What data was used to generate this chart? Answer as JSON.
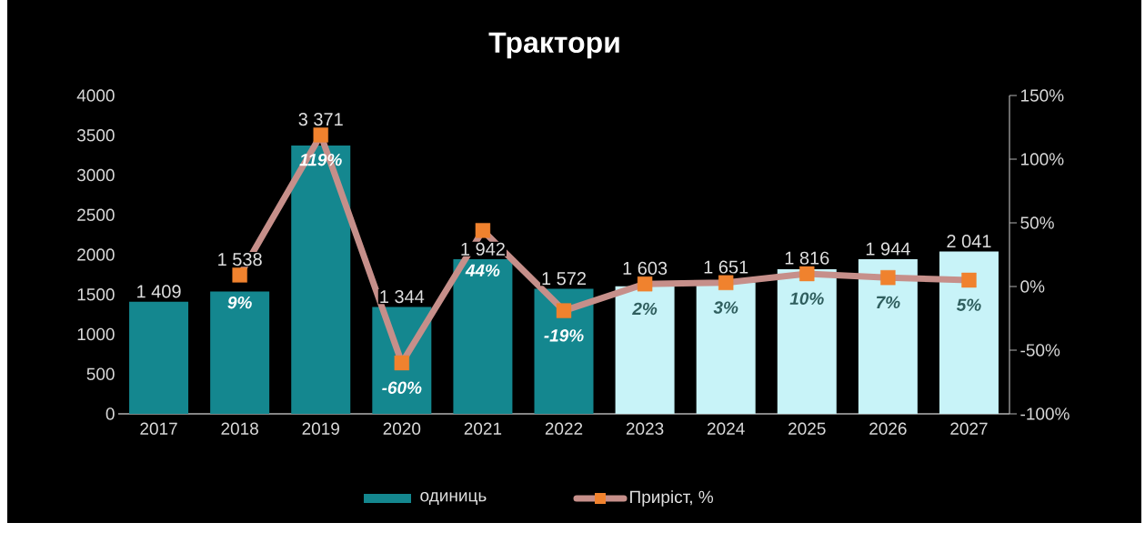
{
  "chart_data": {
    "type": "bar",
    "title": "Трактори",
    "categories": [
      "2017",
      "2018",
      "2019",
      "2020",
      "2021",
      "2022",
      "2023",
      "2024",
      "2025",
      "2026",
      "2027"
    ],
    "series": [
      {
        "name": "одиниць",
        "colors": [
          "#14878f",
          "#14878f",
          "#14878f",
          "#14878f",
          "#14878f",
          "#14878f",
          "#c8f3f8",
          "#c8f3f8",
          "#c8f3f8",
          "#c8f3f8",
          "#c8f3f8"
        ],
        "values": [
          1409,
          1538,
          3371,
          1344,
          1942,
          1572,
          1603,
          1651,
          1816,
          1944,
          2041
        ],
        "value_labels": [
          "1 409",
          "1 538",
          "3 371",
          "1 344",
          "1 942",
          "1 572",
          "1 603",
          "1 651",
          "1 816",
          "1 944",
          "2 041"
        ]
      },
      {
        "name": "Приріст, %",
        "type": "line",
        "axis": "y2",
        "color": "#c68f8a",
        "colors": [
          null,
          "#f0822e",
          "#f0822e",
          "#f0822e",
          "#f0822e",
          "#f0822e",
          "#f0822e",
          "#f0822e",
          "#f0822e",
          "#f0822e",
          "#f0822e"
        ],
        "values": [
          null,
          9,
          119,
          -60,
          44,
          -19,
          2,
          3,
          10,
          7,
          5
        ],
        "value_labels": [
          null,
          "9%",
          "119%",
          "-60%",
          "44%",
          "-19%",
          "2%",
          "3%",
          "10%",
          "7%",
          "5%"
        ]
      }
    ],
    "ylim": [
      0,
      4000
    ],
    "yticks": [
      0,
      500,
      1000,
      1500,
      2000,
      2500,
      3000,
      3500,
      4000
    ],
    "y2lim": [
      -100,
      150
    ],
    "y2ticks": [
      {
        "value": -100,
        "label": "-100%"
      },
      {
        "value": -50,
        "label": "-50%"
      },
      {
        "value": 0,
        "label": "0%"
      },
      {
        "value": 50,
        "label": "50%"
      },
      {
        "value": 100,
        "label": "100%"
      },
      {
        "value": 150,
        "label": "150%"
      }
    ],
    "legend": "bottom",
    "marker": "square"
  }
}
